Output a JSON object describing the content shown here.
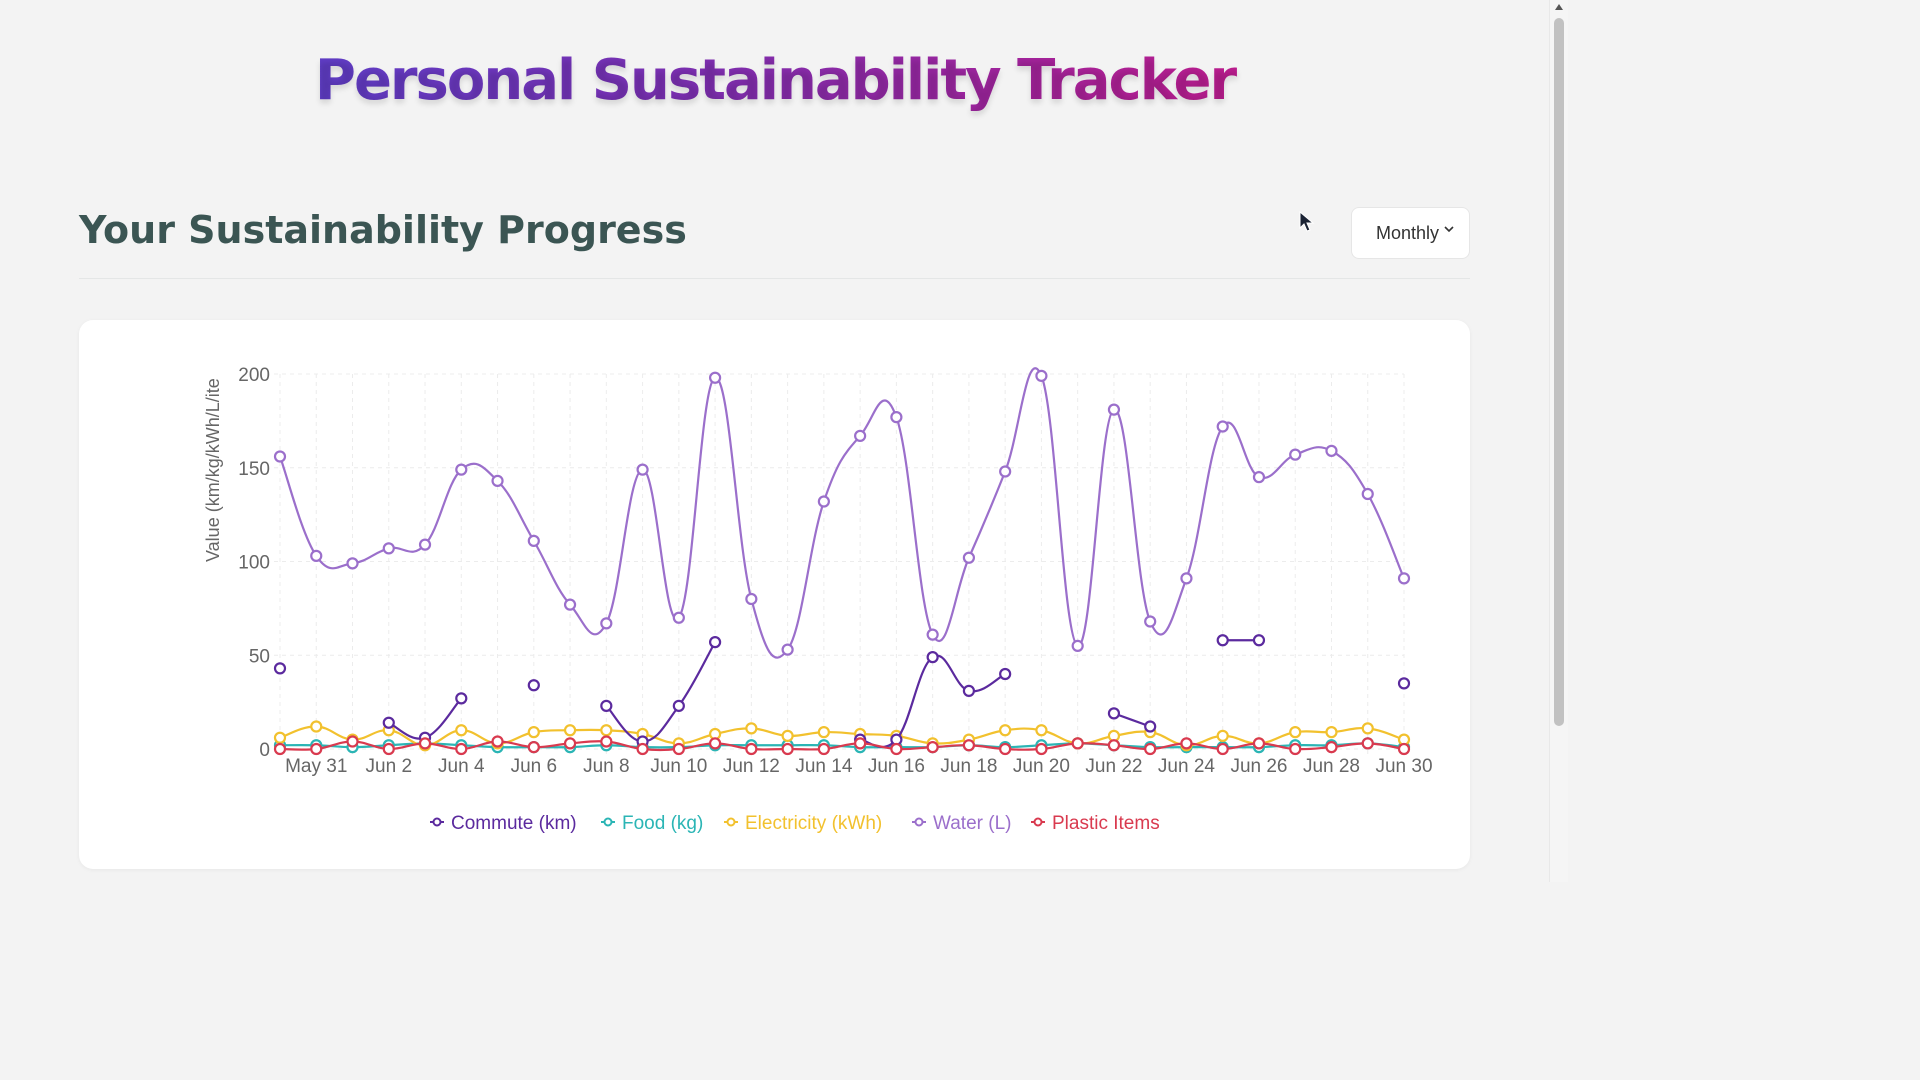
{
  "header": {
    "title": "Personal Sustainability Tracker"
  },
  "section": {
    "heading": "Your Sustainability Progress"
  },
  "period_select": {
    "value": "Monthly"
  },
  "chart_data": {
    "type": "line",
    "ylabel": "Value (km/kg/kWh/L/ite",
    "ylim": [
      0,
      200
    ],
    "y_ticks": [
      0,
      50,
      100,
      150,
      200
    ],
    "x": [
      "May 30",
      "May 31",
      "Jun 1",
      "Jun 2",
      "Jun 3",
      "Jun 4",
      "Jun 5",
      "Jun 6",
      "Jun 7",
      "Jun 8",
      "Jun 9",
      "Jun 10",
      "Jun 11",
      "Jun 12",
      "Jun 13",
      "Jun 14",
      "Jun 15",
      "Jun 16",
      "Jun 17",
      "Jun 18",
      "Jun 19",
      "Jun 20",
      "Jun 21",
      "Jun 22",
      "Jun 23",
      "Jun 24",
      "Jun 25",
      "Jun 26",
      "Jun 27",
      "Jun 28",
      "Jun 29",
      "Jun 30"
    ],
    "x_tick_labels": [
      "May 31",
      "Jun 2",
      "Jun 4",
      "Jun 6",
      "Jun 8",
      "Jun 10",
      "Jun 12",
      "Jun 14",
      "Jun 16",
      "Jun 18",
      "Jun 20",
      "Jun 22",
      "Jun 24",
      "Jun 26",
      "Jun 28",
      "Jun 30"
    ],
    "grid": true,
    "legend_position": "bottom",
    "series": [
      {
        "name": "Commute (km)",
        "color": "#5b2a9e",
        "values": [
          43,
          null,
          null,
          14,
          6,
          27,
          null,
          34,
          null,
          23,
          4,
          23,
          57,
          null,
          null,
          null,
          5,
          5,
          49,
          31,
          40,
          null,
          null,
          19,
          12,
          null,
          58,
          58,
          null,
          null,
          null,
          35
        ]
      },
      {
        "name": "Food (kg)",
        "color": "#2bb5b5",
        "values": [
          2,
          2,
          1,
          2,
          3,
          2,
          1,
          1,
          1,
          2,
          1,
          1,
          2,
          2,
          2,
          2,
          1,
          1,
          1,
          2,
          1,
          2,
          3,
          2,
          1,
          1,
          1,
          1,
          2,
          2,
          3,
          1
        ]
      },
      {
        "name": "Electricity (kWh)",
        "color": "#f2c12e",
        "values": [
          6,
          12,
          5,
          10,
          2,
          10,
          3,
          9,
          10,
          10,
          8,
          3,
          8,
          11,
          7,
          9,
          8,
          7,
          3,
          5,
          10,
          10,
          3,
          7,
          9,
          2,
          7,
          3,
          9,
          9,
          11,
          5
        ]
      },
      {
        "name": "Water (L)",
        "color": "#9b6fcb",
        "values": [
          156,
          103,
          99,
          107,
          109,
          149,
          143,
          111,
          77,
          67,
          149,
          70,
          198,
          80,
          53,
          132,
          167,
          177,
          61,
          102,
          148,
          199,
          55,
          181,
          68,
          91,
          172,
          145,
          157,
          159,
          136,
          91
        ]
      },
      {
        "name": "Plastic Items",
        "color": "#d93a4f",
        "values": [
          0,
          0,
          4,
          0,
          3,
          0,
          4,
          1,
          3,
          4,
          0,
          0,
          3,
          0,
          0,
          0,
          3,
          0,
          1,
          2,
          0,
          0,
          3,
          2,
          0,
          3,
          0,
          3,
          0,
          1,
          3,
          0
        ]
      }
    ]
  }
}
